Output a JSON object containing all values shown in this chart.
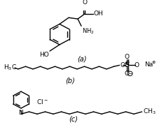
{
  "background_color": "#ffffff",
  "line_color": "#000000",
  "line_width": 1.0,
  "font_size": 6.5,
  "label_a": "(a)",
  "label_b": "(b)",
  "label_c": "(c)"
}
